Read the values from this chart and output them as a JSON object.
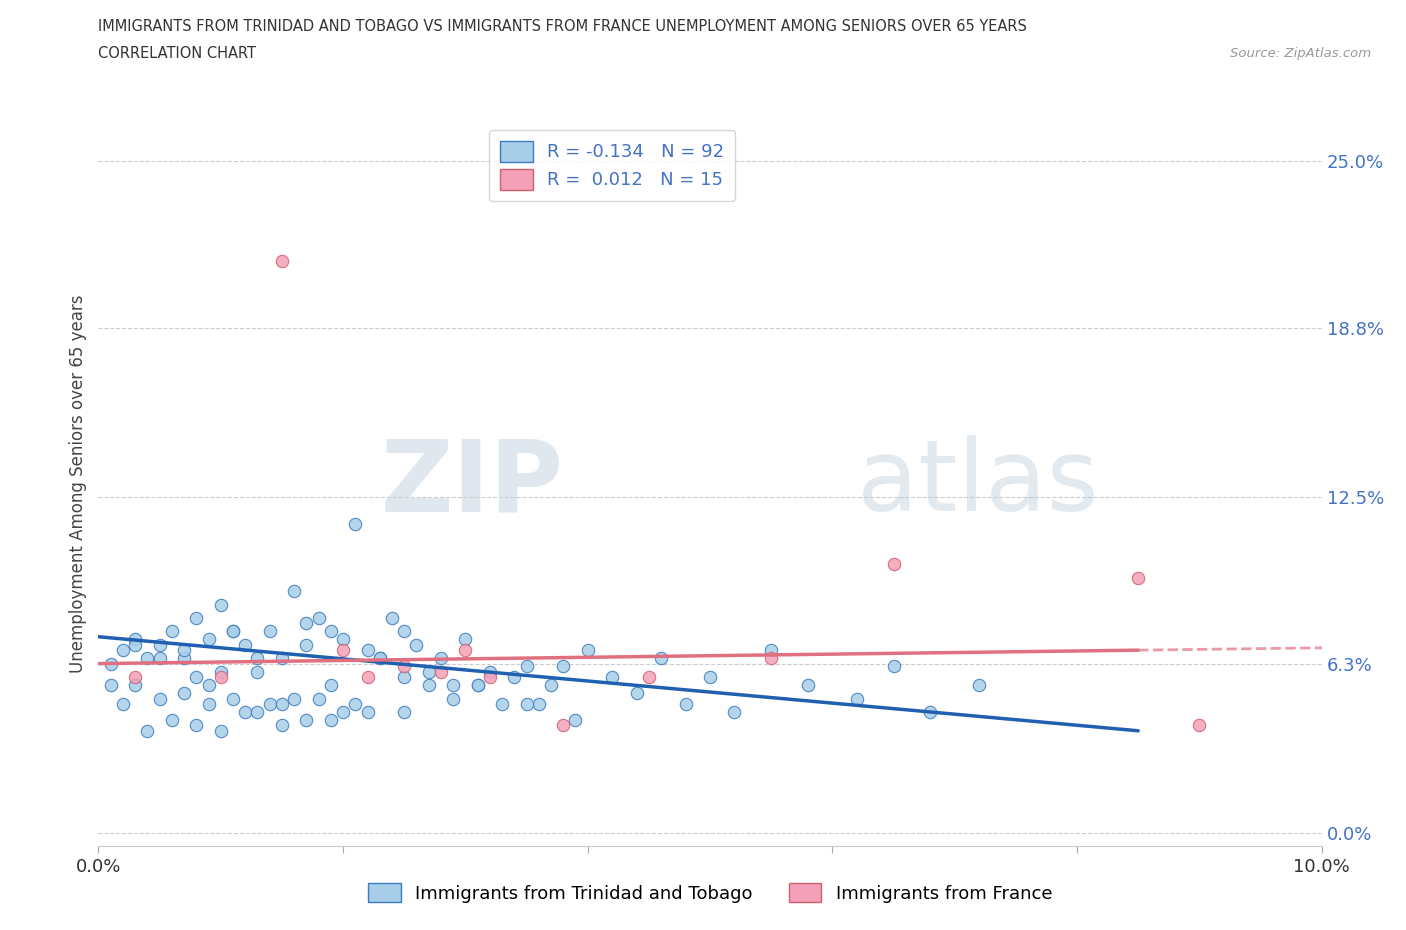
{
  "title_line1": "IMMIGRANTS FROM TRINIDAD AND TOBAGO VS IMMIGRANTS FROM FRANCE UNEMPLOYMENT AMONG SENIORS OVER 65 YEARS",
  "title_line2": "CORRELATION CHART",
  "source": "Source: ZipAtlas.com",
  "ylabel": "Unemployment Among Seniors over 65 years",
  "xlim": [
    0.0,
    0.1
  ],
  "ylim": [
    -0.005,
    0.265
  ],
  "ytick_vals": [
    0.0,
    0.063,
    0.125,
    0.188,
    0.25
  ],
  "ytick_labels": [
    "0.0%",
    "6.3%",
    "12.5%",
    "18.8%",
    "25.0%"
  ],
  "xtick_vals": [
    0.0,
    0.02,
    0.04,
    0.06,
    0.08,
    0.1
  ],
  "xtick_labels": [
    "0.0%",
    "",
    "",
    "",
    "",
    "10.0%"
  ],
  "color_blue": "#A8CEE8",
  "color_pink": "#F4A0B8",
  "edge_blue": "#3A7CC0",
  "edge_pink": "#D06070",
  "line_blue_color": "#2060B0",
  "line_pink_color": "#E07080",
  "R_blue": -0.134,
  "N_blue": 92,
  "R_pink": 0.012,
  "N_pink": 15,
  "legend_label_blue": "Immigrants from Trinidad and Tobago",
  "legend_label_pink": "Immigrants from France",
  "blue_x": [
    0.001,
    0.001,
    0.002,
    0.002,
    0.003,
    0.003,
    0.004,
    0.004,
    0.005,
    0.005,
    0.006,
    0.006,
    0.007,
    0.007,
    0.008,
    0.008,
    0.008,
    0.009,
    0.009,
    0.01,
    0.01,
    0.01,
    0.011,
    0.011,
    0.012,
    0.012,
    0.013,
    0.013,
    0.014,
    0.014,
    0.015,
    0.015,
    0.016,
    0.016,
    0.017,
    0.017,
    0.018,
    0.018,
    0.019,
    0.019,
    0.02,
    0.02,
    0.021,
    0.022,
    0.022,
    0.023,
    0.024,
    0.025,
    0.025,
    0.026,
    0.027,
    0.028,
    0.029,
    0.03,
    0.031,
    0.032,
    0.033,
    0.034,
    0.035,
    0.036,
    0.037,
    0.038,
    0.039,
    0.04,
    0.042,
    0.044,
    0.046,
    0.048,
    0.05,
    0.052,
    0.055,
    0.058,
    0.062,
    0.065,
    0.068,
    0.072,
    0.003,
    0.005,
    0.007,
    0.009,
    0.011,
    0.013,
    0.015,
    0.017,
    0.019,
    0.021,
    0.023,
    0.025,
    0.027,
    0.029,
    0.031,
    0.035
  ],
  "blue_y": [
    0.063,
    0.055,
    0.068,
    0.048,
    0.072,
    0.055,
    0.065,
    0.038,
    0.07,
    0.05,
    0.075,
    0.042,
    0.065,
    0.052,
    0.08,
    0.058,
    0.04,
    0.072,
    0.048,
    0.085,
    0.06,
    0.038,
    0.075,
    0.05,
    0.07,
    0.045,
    0.065,
    0.045,
    0.075,
    0.048,
    0.065,
    0.04,
    0.09,
    0.05,
    0.078,
    0.042,
    0.08,
    0.05,
    0.075,
    0.042,
    0.072,
    0.045,
    0.115,
    0.068,
    0.045,
    0.065,
    0.08,
    0.075,
    0.045,
    0.07,
    0.055,
    0.065,
    0.055,
    0.072,
    0.055,
    0.06,
    0.048,
    0.058,
    0.062,
    0.048,
    0.055,
    0.062,
    0.042,
    0.068,
    0.058,
    0.052,
    0.065,
    0.048,
    0.058,
    0.045,
    0.068,
    0.055,
    0.05,
    0.062,
    0.045,
    0.055,
    0.07,
    0.065,
    0.068,
    0.055,
    0.075,
    0.06,
    0.048,
    0.07,
    0.055,
    0.048,
    0.065,
    0.058,
    0.06,
    0.05,
    0.055,
    0.048
  ],
  "pink_x": [
    0.003,
    0.01,
    0.015,
    0.02,
    0.022,
    0.025,
    0.028,
    0.03,
    0.032,
    0.038,
    0.045,
    0.055,
    0.065,
    0.085,
    0.09
  ],
  "pink_y": [
    0.058,
    0.058,
    0.213,
    0.068,
    0.058,
    0.062,
    0.06,
    0.068,
    0.058,
    0.04,
    0.058,
    0.065,
    0.1,
    0.095,
    0.04
  ],
  "blue_line_x0": 0.0,
  "blue_line_x1": 0.085,
  "pink_line_solid_x0": 0.0,
  "pink_line_solid_x1": 0.1,
  "pink_line_dash_x0": 0.085,
  "pink_line_dash_x1": 0.1
}
